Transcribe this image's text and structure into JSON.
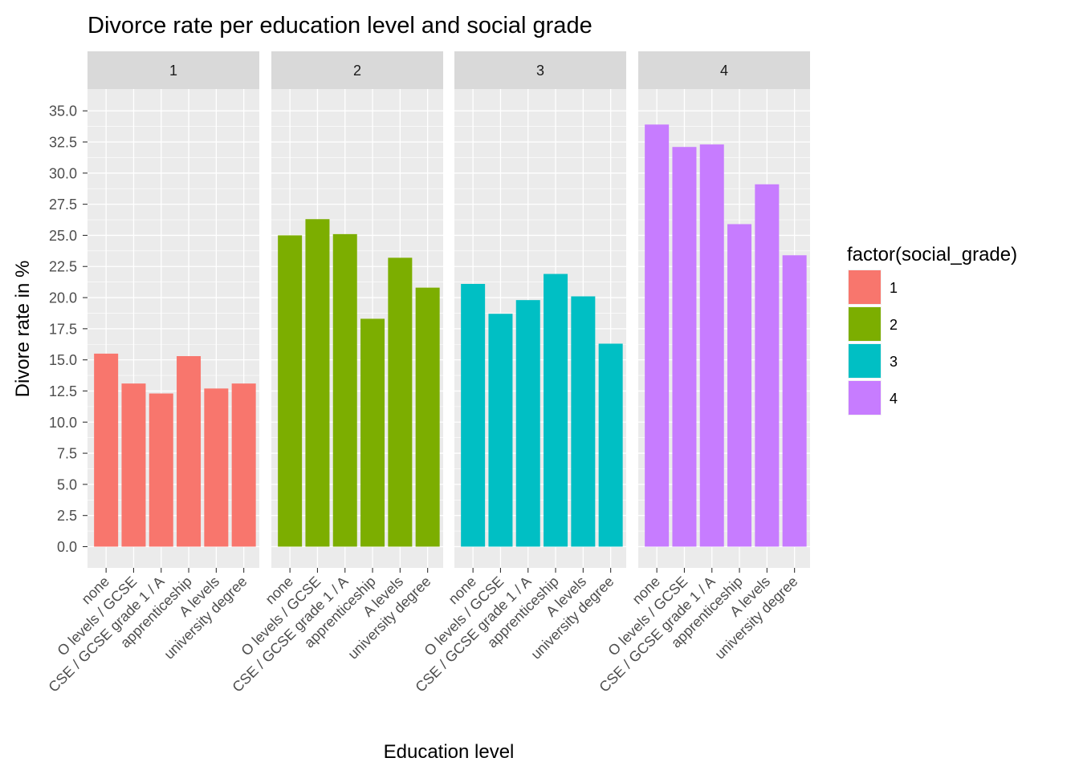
{
  "chart_data": {
    "type": "bar",
    "title": "Divorce rate per education level and social grade",
    "xlabel": "Education level",
    "ylabel": "Divore rate in %",
    "categories": [
      "none",
      "O levels / GCSE",
      "CSE / GCSE grade 1 / A",
      "apprenticeship",
      "A levels",
      "university degree"
    ],
    "ylim": [
      0,
      35
    ],
    "y_ticks": [
      "0.0",
      "2.5",
      "5.0",
      "7.5",
      "10.0",
      "12.5",
      "15.0",
      "17.5",
      "20.0",
      "22.5",
      "25.0",
      "27.5",
      "30.0",
      "32.5",
      "35.0"
    ],
    "facets": [
      {
        "label": "1",
        "color": "#F8766D",
        "values": [
          15.5,
          13.1,
          12.3,
          15.3,
          12.7,
          13.1
        ]
      },
      {
        "label": "2",
        "color": "#7CAE00",
        "values": [
          25.0,
          26.3,
          25.1,
          18.3,
          23.2,
          20.8
        ]
      },
      {
        "label": "3",
        "color": "#00BFC4",
        "values": [
          21.1,
          18.7,
          19.8,
          21.9,
          20.1,
          16.3
        ]
      },
      {
        "label": "4",
        "color": "#C77CFF",
        "values": [
          33.9,
          32.1,
          32.3,
          25.9,
          29.1,
          23.4
        ]
      }
    ],
    "legend": {
      "title": "factor(social_grade)",
      "position": "right",
      "items": [
        {
          "label": "1",
          "color": "#F8766D"
        },
        {
          "label": "2",
          "color": "#7CAE00"
        },
        {
          "label": "3",
          "color": "#00BFC4"
        },
        {
          "label": "4",
          "color": "#C77CFF"
        }
      ]
    },
    "grid": true,
    "panel_background": "#EBEBEB",
    "strip_background": "#D9D9D9"
  }
}
